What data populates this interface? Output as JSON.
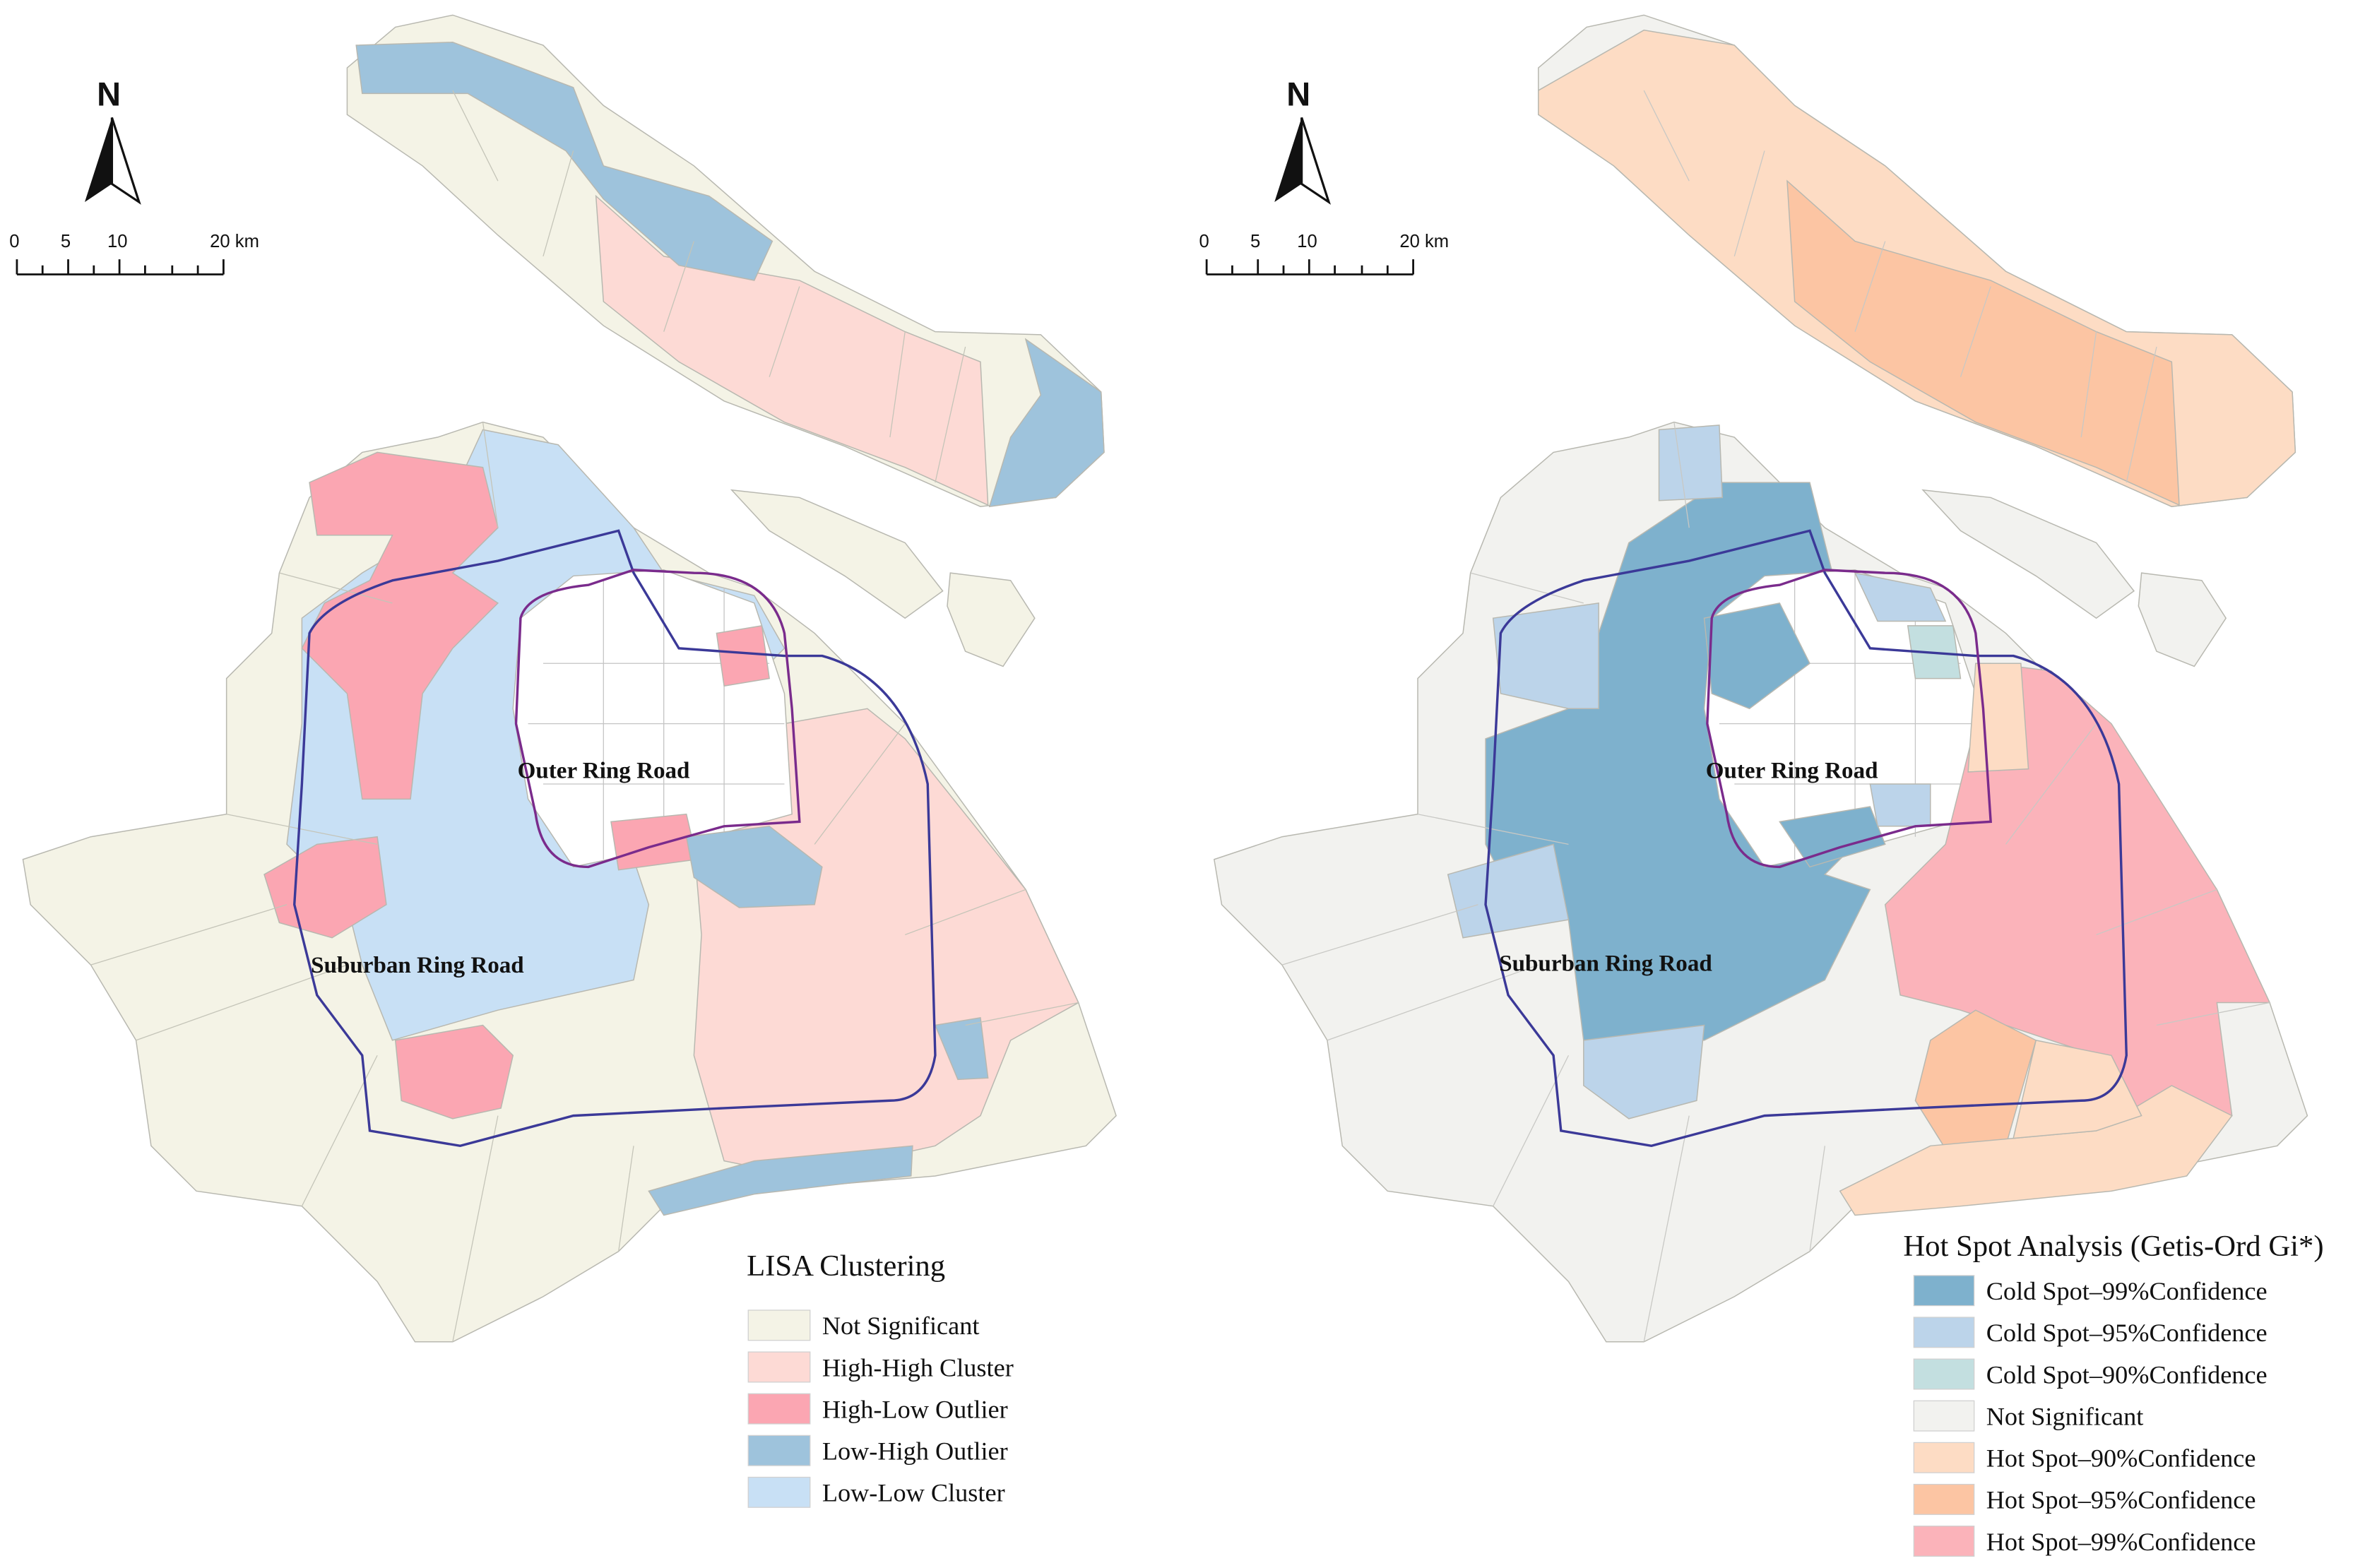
{
  "lisa_map": {
    "north_label": "N",
    "scale": {
      "ticks": [
        "0",
        "5",
        "10",
        "20 km"
      ]
    },
    "road_labels": {
      "outer": "Outer Ring Road",
      "suburban": "Suburban Ring Road"
    },
    "legend": {
      "title": "LISA Clustering",
      "items": [
        {
          "label": "Not Significant",
          "color": "#f4f3e6"
        },
        {
          "label": "High-High Cluster",
          "color": "#fddad5"
        },
        {
          "label": "High-Low Outlier",
          "color": "#fba6b2"
        },
        {
          "label": "Low-High Outlier",
          "color": "#9ec3dc"
        },
        {
          "label": "Low-Low Cluster",
          "color": "#c8e0f5"
        }
      ]
    }
  },
  "hotspot_map": {
    "north_label": "N",
    "scale": {
      "ticks": [
        "0",
        "5",
        "10",
        "20 km"
      ]
    },
    "road_labels": {
      "outer": "Outer Ring Road",
      "suburban": "Suburban Ring Road"
    },
    "legend": {
      "title": "Hot Spot Analysis (Getis-Ord Gi*)",
      "items": [
        {
          "label": "Cold Spot–99%Confidence",
          "color": "#7eb1cd"
        },
        {
          "label": "Cold Spot–95%Confidence",
          "color": "#bcd4ea"
        },
        {
          "label": "Cold Spot–90%Confidence",
          "color": "#c3dfe0"
        },
        {
          "label": "Not Significant",
          "color": "#f2f2ef"
        },
        {
          "label": "Hot Spot–90%Confidence",
          "color": "#fddcc4"
        },
        {
          "label": "Hot Spot–95%Confidence",
          "color": "#fcc5a3"
        },
        {
          "label": "Hot Spot–99%Confidence",
          "color": "#fbb3ba"
        }
      ]
    }
  },
  "colors": {
    "suburban_ring": "#3b3998",
    "outer_ring": "#7a2b8c"
  }
}
